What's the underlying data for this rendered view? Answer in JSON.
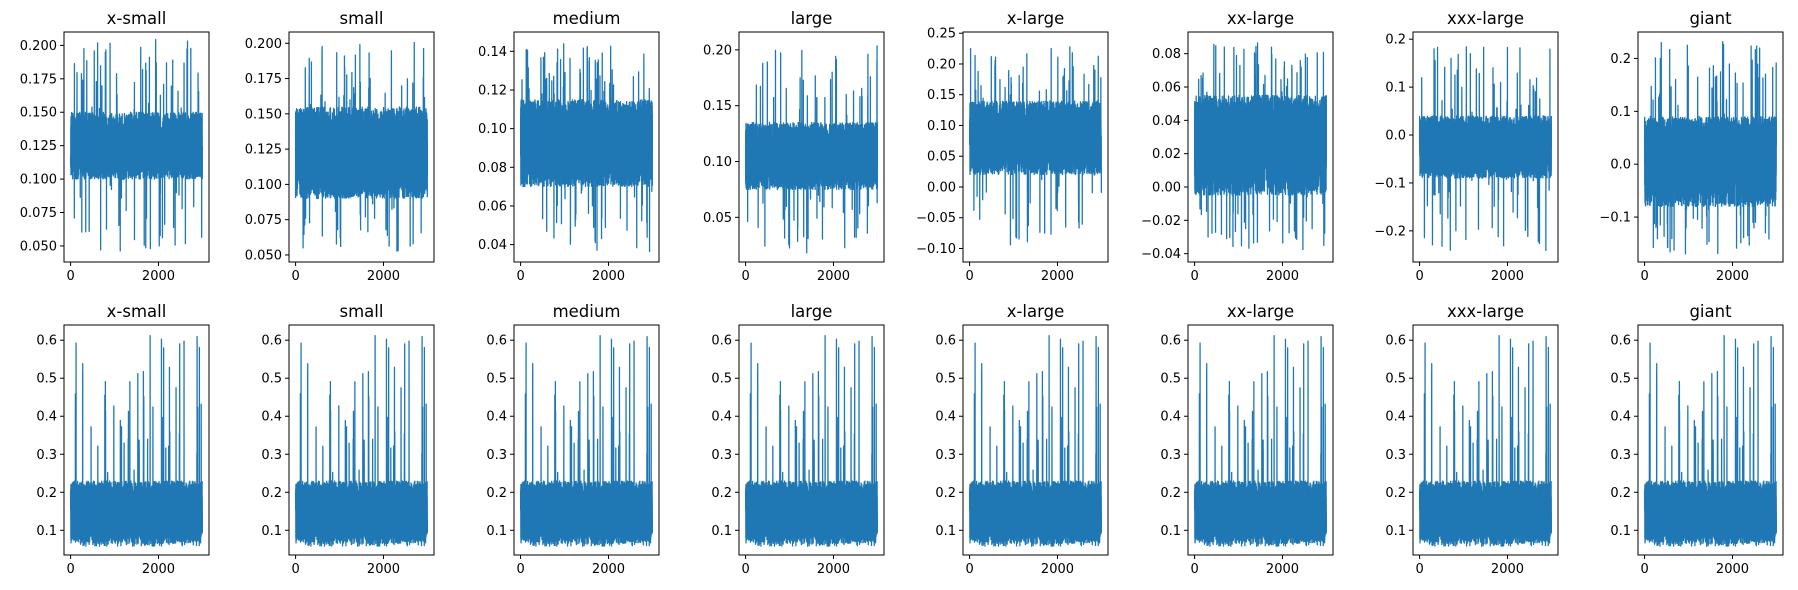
{
  "chart_data": [
    {
      "type": "line",
      "title": "x-small",
      "xlim": [
        -150,
        3150
      ],
      "ylim": [
        0.038,
        0.21
      ],
      "xticks": [
        "0",
        "2000"
      ],
      "yticks": [
        "0.050",
        "0.075",
        "0.100",
        "0.125",
        "0.150",
        "0.175",
        "0.200"
      ],
      "series_color": "#1f77b4",
      "series": [
        {
          "n_points": 3000,
          "x_start": 0,
          "x_end": 2999,
          "baseline_low": 0.1,
          "baseline_high": 0.15,
          "spike_high": 0.205,
          "spike_low": 0.046
        }
      ]
    },
    {
      "type": "line",
      "title": "small",
      "xlim": [
        -150,
        3150
      ],
      "ylim": [
        0.045,
        0.208
      ],
      "xticks": [
        "0",
        "2000"
      ],
      "yticks": [
        "0.050",
        "0.075",
        "0.100",
        "0.125",
        "0.150",
        "0.175",
        "0.200"
      ],
      "series_color": "#1f77b4",
      "series": [
        {
          "n_points": 3000,
          "x_start": 0,
          "x_end": 2999,
          "baseline_low": 0.09,
          "baseline_high": 0.155,
          "spike_high": 0.203,
          "spike_low": 0.051
        }
      ]
    },
    {
      "type": "line",
      "title": "medium",
      "xlim": [
        -150,
        3150
      ],
      "ylim": [
        0.031,
        0.15
      ],
      "xticks": [
        "0",
        "2000"
      ],
      "yticks": [
        "0.04",
        "0.06",
        "0.08",
        "0.10",
        "0.12",
        "0.14"
      ],
      "series_color": "#1f77b4",
      "series": [
        {
          "n_points": 3000,
          "x_start": 0,
          "x_end": 2999,
          "baseline_low": 0.07,
          "baseline_high": 0.115,
          "spike_high": 0.144,
          "spike_low": 0.036
        }
      ]
    },
    {
      "type": "line",
      "title": "large",
      "xlim": [
        -150,
        3150
      ],
      "ylim": [
        0.01,
        0.216
      ],
      "xticks": [
        "0",
        "2000"
      ],
      "yticks": [
        "0.05",
        "0.10",
        "0.15",
        "0.20"
      ],
      "series_color": "#1f77b4",
      "series": [
        {
          "n_points": 3000,
          "x_start": 0,
          "x_end": 2999,
          "baseline_low": 0.075,
          "baseline_high": 0.135,
          "spike_high": 0.205,
          "spike_low": 0.018
        }
      ]
    },
    {
      "type": "line",
      "title": "x-large",
      "xlim": [
        -150,
        3150
      ],
      "ylim": [
        -0.122,
        0.252
      ],
      "xticks": [
        "0",
        "2000"
      ],
      "yticks": [
        "−0.10",
        "−0.05",
        "0.00",
        "0.05",
        "0.10",
        "0.15",
        "0.20",
        "0.25"
      ],
      "series_color": "#1f77b4",
      "series": [
        {
          "n_points": 3000,
          "x_start": 0,
          "x_end": 2999,
          "baseline_low": 0.02,
          "baseline_high": 0.14,
          "spike_high": 0.235,
          "spike_low": -0.105
        }
      ]
    },
    {
      "type": "line",
      "title": "xx-large",
      "xlim": [
        -150,
        3150
      ],
      "ylim": [
        -0.045,
        0.093
      ],
      "xticks": [
        "0",
        "2000"
      ],
      "yticks": [
        "−0.04",
        "−0.02",
        "0.00",
        "0.02",
        "0.04",
        "0.06",
        "0.08"
      ],
      "series_color": "#1f77b4",
      "series": [
        {
          "n_points": 3000,
          "x_start": 0,
          "x_end": 2999,
          "baseline_low": -0.005,
          "baseline_high": 0.055,
          "spike_high": 0.087,
          "spike_low": -0.038
        }
      ]
    },
    {
      "type": "line",
      "title": "xxx-large",
      "xlim": [
        -150,
        3150
      ],
      "ylim": [
        -0.265,
        0.215
      ],
      "xticks": [
        "0",
        "2000"
      ],
      "yticks": [
        "−0.2",
        "−0.1",
        "0.0",
        "0.1",
        "0.2"
      ],
      "series_color": "#1f77b4",
      "series": [
        {
          "n_points": 3000,
          "x_start": 0,
          "x_end": 2999,
          "baseline_low": -0.09,
          "baseline_high": 0.04,
          "spike_high": 0.195,
          "spike_low": -0.245
        }
      ]
    },
    {
      "type": "line",
      "title": "giant",
      "xlim": [
        -150,
        3150
      ],
      "ylim": [
        -0.185,
        0.25
      ],
      "xticks": [
        "0",
        "2000"
      ],
      "yticks": [
        "−0.1",
        "0.0",
        "0.1",
        "0.2"
      ],
      "series_color": "#1f77b4",
      "series": [
        {
          "n_points": 3000,
          "x_start": 0,
          "x_end": 2999,
          "baseline_low": -0.08,
          "baseline_high": 0.09,
          "spike_high": 0.235,
          "spike_low": -0.17
        }
      ]
    },
    {
      "type": "line",
      "title": "x-small",
      "xlim": [
        -150,
        3150
      ],
      "ylim": [
        0.035,
        0.64
      ],
      "xticks": [
        "0",
        "2000"
      ],
      "yticks": [
        "0.1",
        "0.2",
        "0.3",
        "0.4",
        "0.5",
        "0.6"
      ],
      "series_color": "#1f77b4",
      "series": [
        {
          "n_points": 3000,
          "x_start": 0,
          "x_end": 2999,
          "baseline_low": 0.065,
          "baseline_high": 0.23,
          "spike_high": 0.612,
          "spike_low": 0.058,
          "peaks": [
            [
              1810,
              0.612
            ],
            [
              2400,
              0.475
            ]
          ]
        }
      ]
    },
    {
      "type": "line",
      "title": "small",
      "xlim": [
        -150,
        3150
      ],
      "ylim": [
        0.035,
        0.64
      ],
      "xticks": [
        "0",
        "2000"
      ],
      "yticks": [
        "0.1",
        "0.2",
        "0.3",
        "0.4",
        "0.5",
        "0.6"
      ],
      "series_color": "#1f77b4",
      "series": [
        {
          "n_points": 3000,
          "x_start": 0,
          "x_end": 2999,
          "baseline_low": 0.065,
          "baseline_high": 0.23,
          "spike_high": 0.612,
          "spike_low": 0.058,
          "peaks": [
            [
              1810,
              0.612
            ],
            [
              2400,
              0.475
            ]
          ]
        }
      ]
    },
    {
      "type": "line",
      "title": "medium",
      "xlim": [
        -150,
        3150
      ],
      "ylim": [
        0.035,
        0.64
      ],
      "xticks": [
        "0",
        "2000"
      ],
      "yticks": [
        "0.1",
        "0.2",
        "0.3",
        "0.4",
        "0.5",
        "0.6"
      ],
      "series_color": "#1f77b4",
      "series": [
        {
          "n_points": 3000,
          "x_start": 0,
          "x_end": 2999,
          "baseline_low": 0.065,
          "baseline_high": 0.23,
          "spike_high": 0.612,
          "spike_low": 0.058,
          "peaks": [
            [
              1810,
              0.612
            ],
            [
              2400,
              0.475
            ]
          ]
        }
      ]
    },
    {
      "type": "line",
      "title": "large",
      "xlim": [
        -150,
        3150
      ],
      "ylim": [
        0.035,
        0.64
      ],
      "xticks": [
        "0",
        "2000"
      ],
      "yticks": [
        "0.1",
        "0.2",
        "0.3",
        "0.4",
        "0.5",
        "0.6"
      ],
      "series_color": "#1f77b4",
      "series": [
        {
          "n_points": 3000,
          "x_start": 0,
          "x_end": 2999,
          "baseline_low": 0.065,
          "baseline_high": 0.23,
          "spike_high": 0.612,
          "spike_low": 0.058,
          "peaks": [
            [
              1810,
              0.612
            ],
            [
              2400,
              0.475
            ]
          ]
        }
      ]
    },
    {
      "type": "line",
      "title": "x-large",
      "xlim": [
        -150,
        3150
      ],
      "ylim": [
        0.035,
        0.64
      ],
      "xticks": [
        "0",
        "2000"
      ],
      "yticks": [
        "0.1",
        "0.2",
        "0.3",
        "0.4",
        "0.5",
        "0.6"
      ],
      "series_color": "#1f77b4",
      "series": [
        {
          "n_points": 3000,
          "x_start": 0,
          "x_end": 2999,
          "baseline_low": 0.065,
          "baseline_high": 0.23,
          "spike_high": 0.612,
          "spike_low": 0.058,
          "peaks": [
            [
              1810,
              0.612
            ],
            [
              2400,
              0.475
            ]
          ]
        }
      ]
    },
    {
      "type": "line",
      "title": "xx-large",
      "xlim": [
        -150,
        3150
      ],
      "ylim": [
        0.035,
        0.64
      ],
      "xticks": [
        "0",
        "2000"
      ],
      "yticks": [
        "0.1",
        "0.2",
        "0.3",
        "0.4",
        "0.5",
        "0.6"
      ],
      "series_color": "#1f77b4",
      "series": [
        {
          "n_points": 3000,
          "x_start": 0,
          "x_end": 2999,
          "baseline_low": 0.065,
          "baseline_high": 0.23,
          "spike_high": 0.612,
          "spike_low": 0.058,
          "peaks": [
            [
              1810,
              0.612
            ],
            [
              2400,
              0.475
            ]
          ]
        }
      ]
    },
    {
      "type": "line",
      "title": "xxx-large",
      "xlim": [
        -150,
        3150
      ],
      "ylim": [
        0.035,
        0.64
      ],
      "xticks": [
        "0",
        "2000"
      ],
      "yticks": [
        "0.1",
        "0.2",
        "0.3",
        "0.4",
        "0.5",
        "0.6"
      ],
      "series_color": "#1f77b4",
      "series": [
        {
          "n_points": 3000,
          "x_start": 0,
          "x_end": 2999,
          "baseline_low": 0.065,
          "baseline_high": 0.23,
          "spike_high": 0.612,
          "spike_low": 0.058,
          "peaks": [
            [
              1810,
              0.612
            ],
            [
              2400,
              0.475
            ]
          ]
        }
      ]
    },
    {
      "type": "line",
      "title": "giant",
      "xlim": [
        -150,
        3150
      ],
      "ylim": [
        0.035,
        0.64
      ],
      "xticks": [
        "0",
        "2000"
      ],
      "yticks": [
        "0.1",
        "0.2",
        "0.3",
        "0.4",
        "0.5",
        "0.6"
      ],
      "series_color": "#1f77b4",
      "series": [
        {
          "n_points": 3000,
          "x_start": 0,
          "x_end": 2999,
          "baseline_low": 0.065,
          "baseline_high": 0.23,
          "spike_high": 0.612,
          "spike_low": 0.058,
          "peaks": [
            [
              1810,
              0.612
            ],
            [
              2400,
              0.475
            ]
          ]
        }
      ]
    }
  ]
}
